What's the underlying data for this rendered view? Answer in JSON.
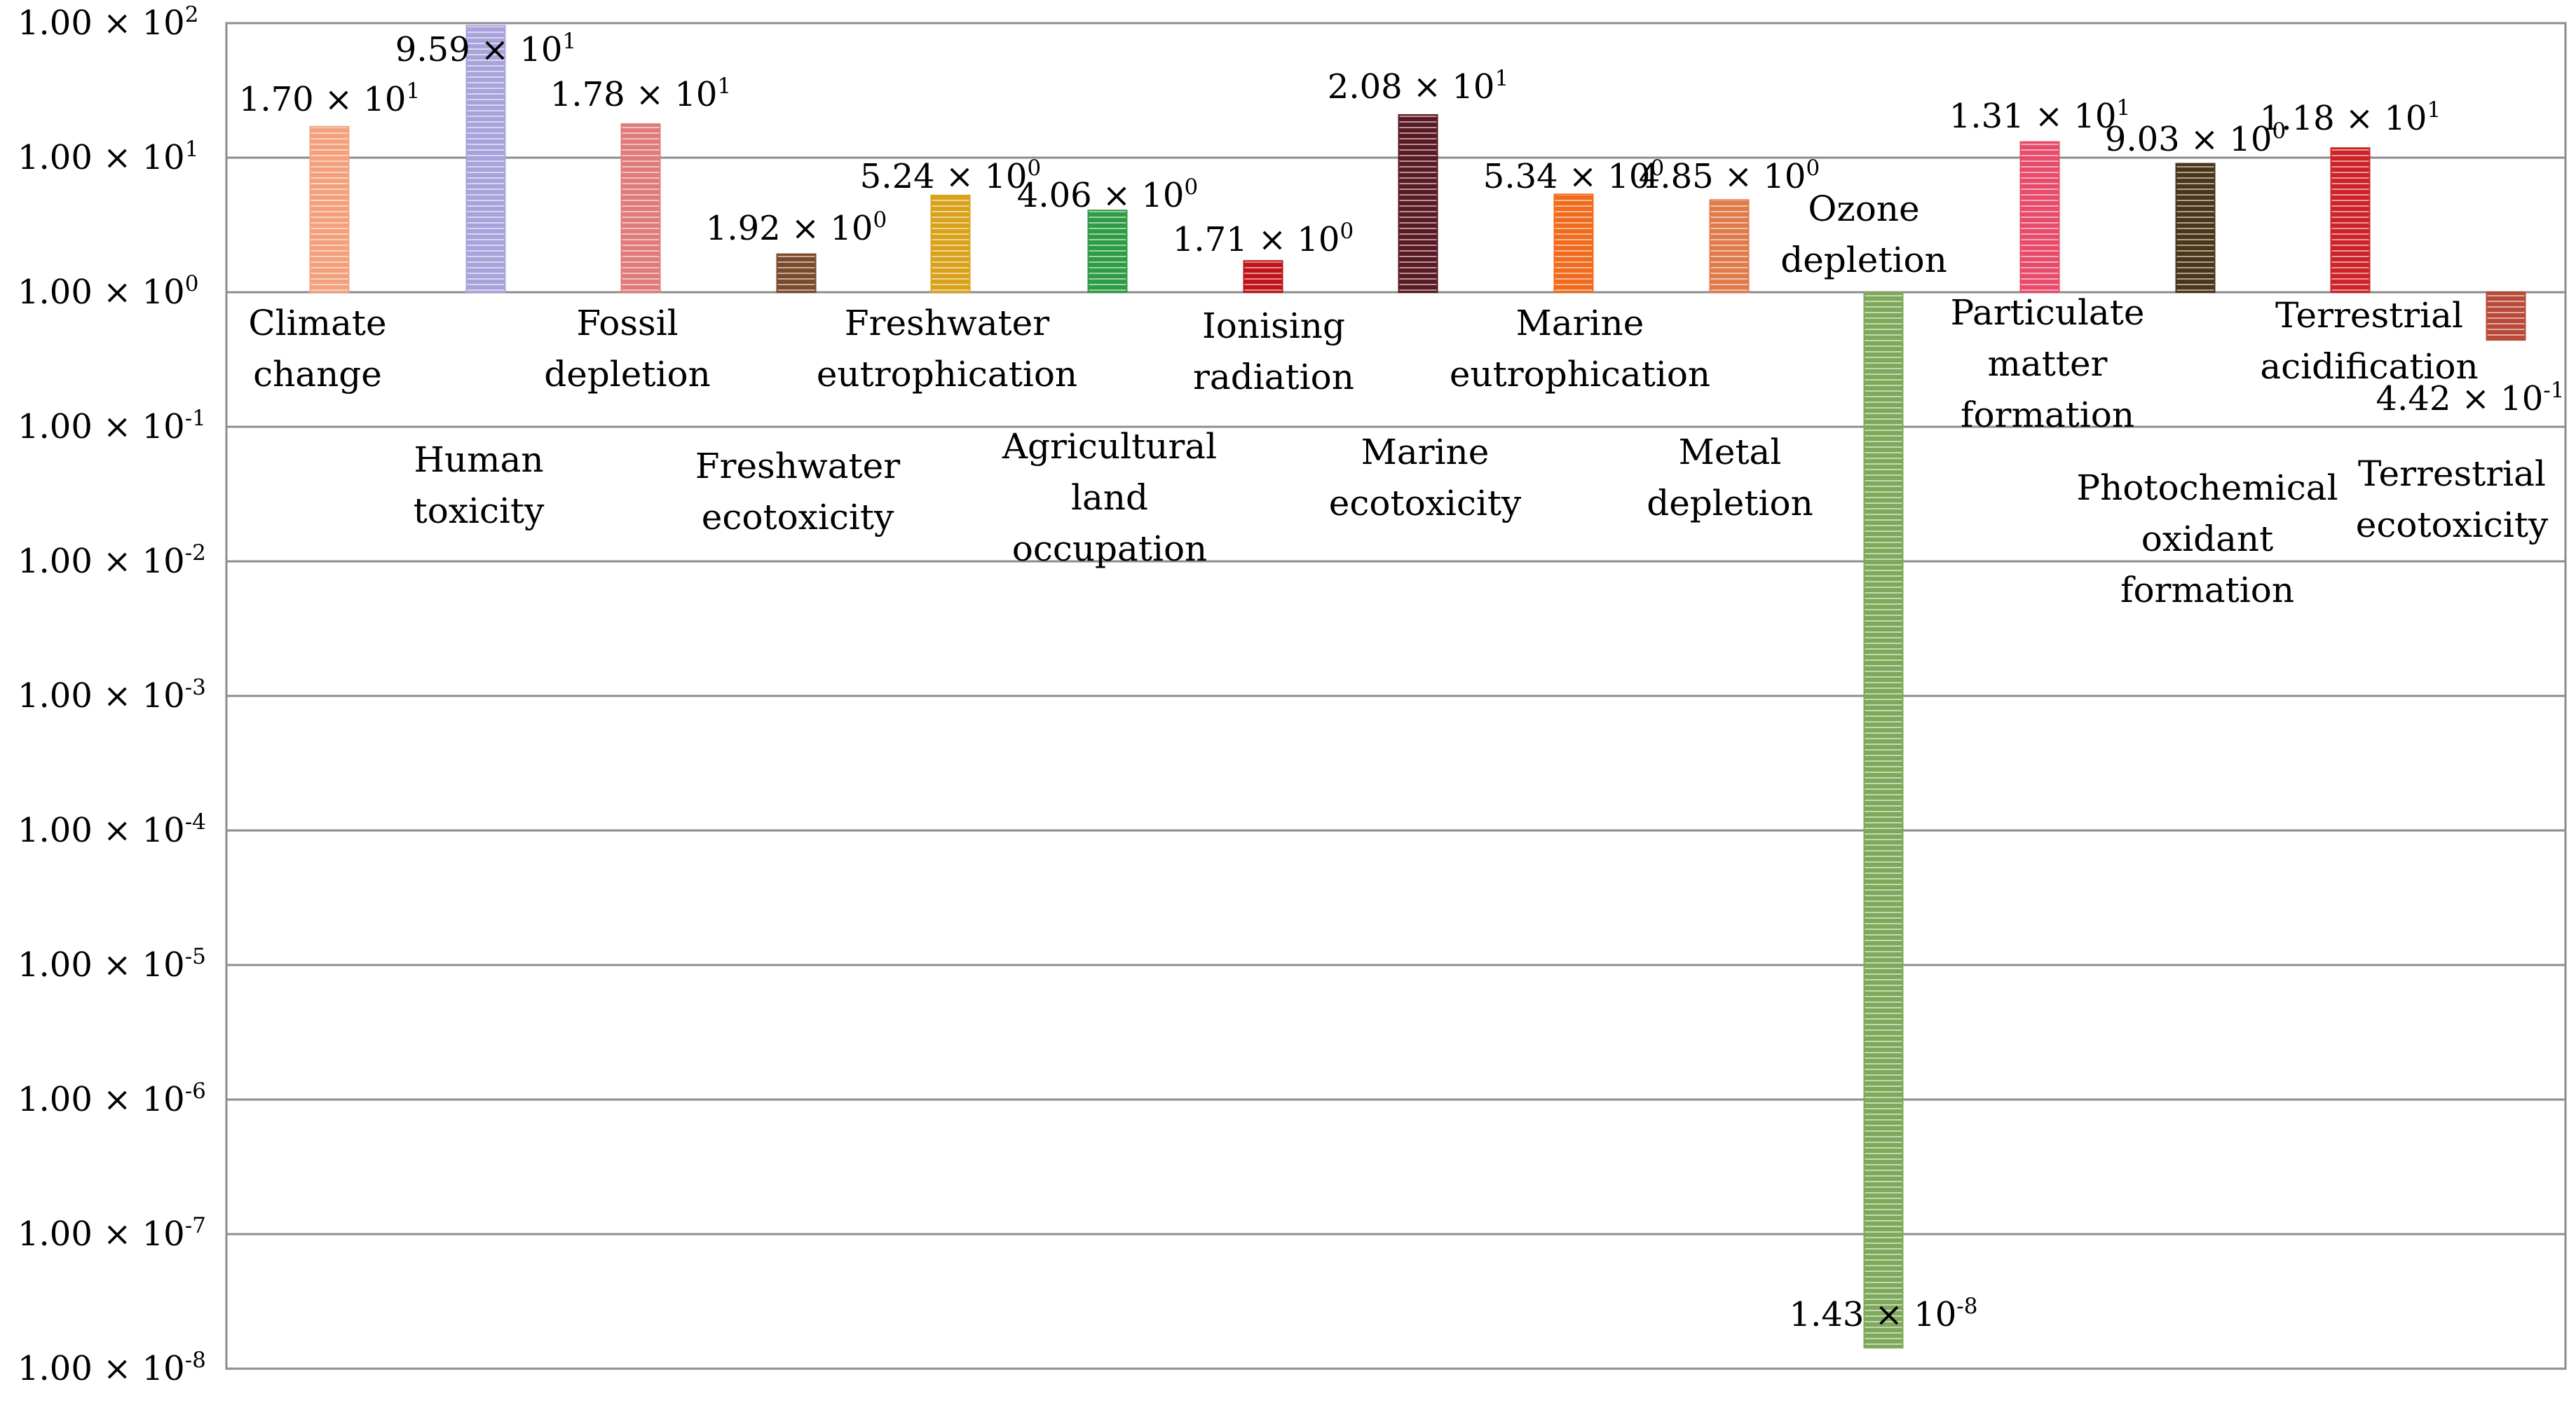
{
  "chart_data": {
    "type": "bar",
    "title": "",
    "xlabel": "",
    "ylabel": "",
    "yscale": "log",
    "ylim": [
      1e-08,
      100
    ],
    "baseline": 1,
    "grid": true,
    "y_ticks": [
      {
        "mant": "1.00",
        "base": "10",
        "exp": "2",
        "value": 100
      },
      {
        "mant": "1.00",
        "base": "10",
        "exp": "1",
        "value": 10
      },
      {
        "mant": "1.00",
        "base": "10",
        "exp": "0",
        "value": 1
      },
      {
        "mant": "1.00",
        "base": "10",
        "exp": "-1",
        "value": 0.1
      },
      {
        "mant": "1.00",
        "base": "10",
        "exp": "-2",
        "value": 0.01
      },
      {
        "mant": "1.00",
        "base": "10",
        "exp": "-3",
        "value": 0.001
      },
      {
        "mant": "1.00",
        "base": "10",
        "exp": "-4",
        "value": 0.0001
      },
      {
        "mant": "1.00",
        "base": "10",
        "exp": "-5",
        "value": 1e-05
      },
      {
        "mant": "1.00",
        "base": "10",
        "exp": "-6",
        "value": 1e-06
      },
      {
        "mant": "1.00",
        "base": "10",
        "exp": "-7",
        "value": 1e-07
      },
      {
        "mant": "1.00",
        "base": "10",
        "exp": "-8",
        "value": 1e-08
      }
    ],
    "bars": [
      {
        "category": [
          "Climate",
          "change"
        ],
        "value": 17.0,
        "label": {
          "mant": "1.70",
          "exp": "1"
        },
        "color": "#f4a07c"
      },
      {
        "category": [
          "Human",
          "toxicity"
        ],
        "value": 95.9,
        "label": {
          "mant": "9.59",
          "exp": "1"
        },
        "color": "#a9a3dc"
      },
      {
        "category": [
          "Fossil",
          "depletion"
        ],
        "value": 17.8,
        "label": {
          "mant": "1.78",
          "exp": "1"
        },
        "color": "#e07b7b"
      },
      {
        "category": [
          "Freshwater",
          "ecotoxicity"
        ],
        "value": 1.92,
        "label": {
          "mant": "1.92",
          "exp": "0"
        },
        "color": "#7a4a2c"
      },
      {
        "category": [
          "Freshwater",
          "eutrophication"
        ],
        "value": 5.24,
        "label": {
          "mant": "5.24",
          "exp": "0"
        },
        "color": "#d9a21a"
      },
      {
        "category": [
          "Agricultural",
          "land",
          "occupation"
        ],
        "value": 4.06,
        "label": {
          "mant": "4.06",
          "exp": "0"
        },
        "color": "#2e9b45"
      },
      {
        "category": [
          "Ionising",
          "radiation"
        ],
        "value": 1.71,
        "label": {
          "mant": "1.71",
          "exp": "0"
        },
        "color": "#c0141a"
      },
      {
        "category": [
          "Marine",
          "ecotoxicity"
        ],
        "value": 20.8,
        "label": {
          "mant": "2.08",
          "exp": "1"
        },
        "color": "#5a1a24"
      },
      {
        "category": [
          "Marine",
          "eutrophication"
        ],
        "value": 5.34,
        "label": {
          "mant": "5.34",
          "exp": "0"
        },
        "color": "#f26a1c"
      },
      {
        "category": [
          "Metal",
          "depletion"
        ],
        "value": 4.85,
        "label": {
          "mant": "4.85",
          "exp": "0"
        },
        "color": "#e07a4a"
      },
      {
        "category": [
          "Ozone",
          "depletion"
        ],
        "value": 1.43e-08,
        "label": {
          "mant": "1.43",
          "exp": "-8"
        },
        "color": "#7ea85a"
      },
      {
        "category": [
          "Particulate",
          "matter",
          "formation"
        ],
        "value": 13.1,
        "label": {
          "mant": "1.31",
          "exp": "1"
        },
        "color": "#e84a6a"
      },
      {
        "category": [
          "Photochemical",
          "oxidant",
          "formation"
        ],
        "value": 9.03,
        "label": {
          "mant": "9.03",
          "exp": "0"
        },
        "color": "#4a3618"
      },
      {
        "category": [
          "Terrestrial",
          "acidification"
        ],
        "value": 11.8,
        "label": {
          "mant": "1.18",
          "exp": "1"
        },
        "color": "#cc2228"
      },
      {
        "category": [
          "Terrestrial",
          "ecotoxicity"
        ],
        "value": 0.442,
        "label": {
          "mant": "4.42",
          "exp": "-1"
        },
        "color": "#b84a3a"
      }
    ],
    "times_sign": "×",
    "base_text": "10"
  }
}
